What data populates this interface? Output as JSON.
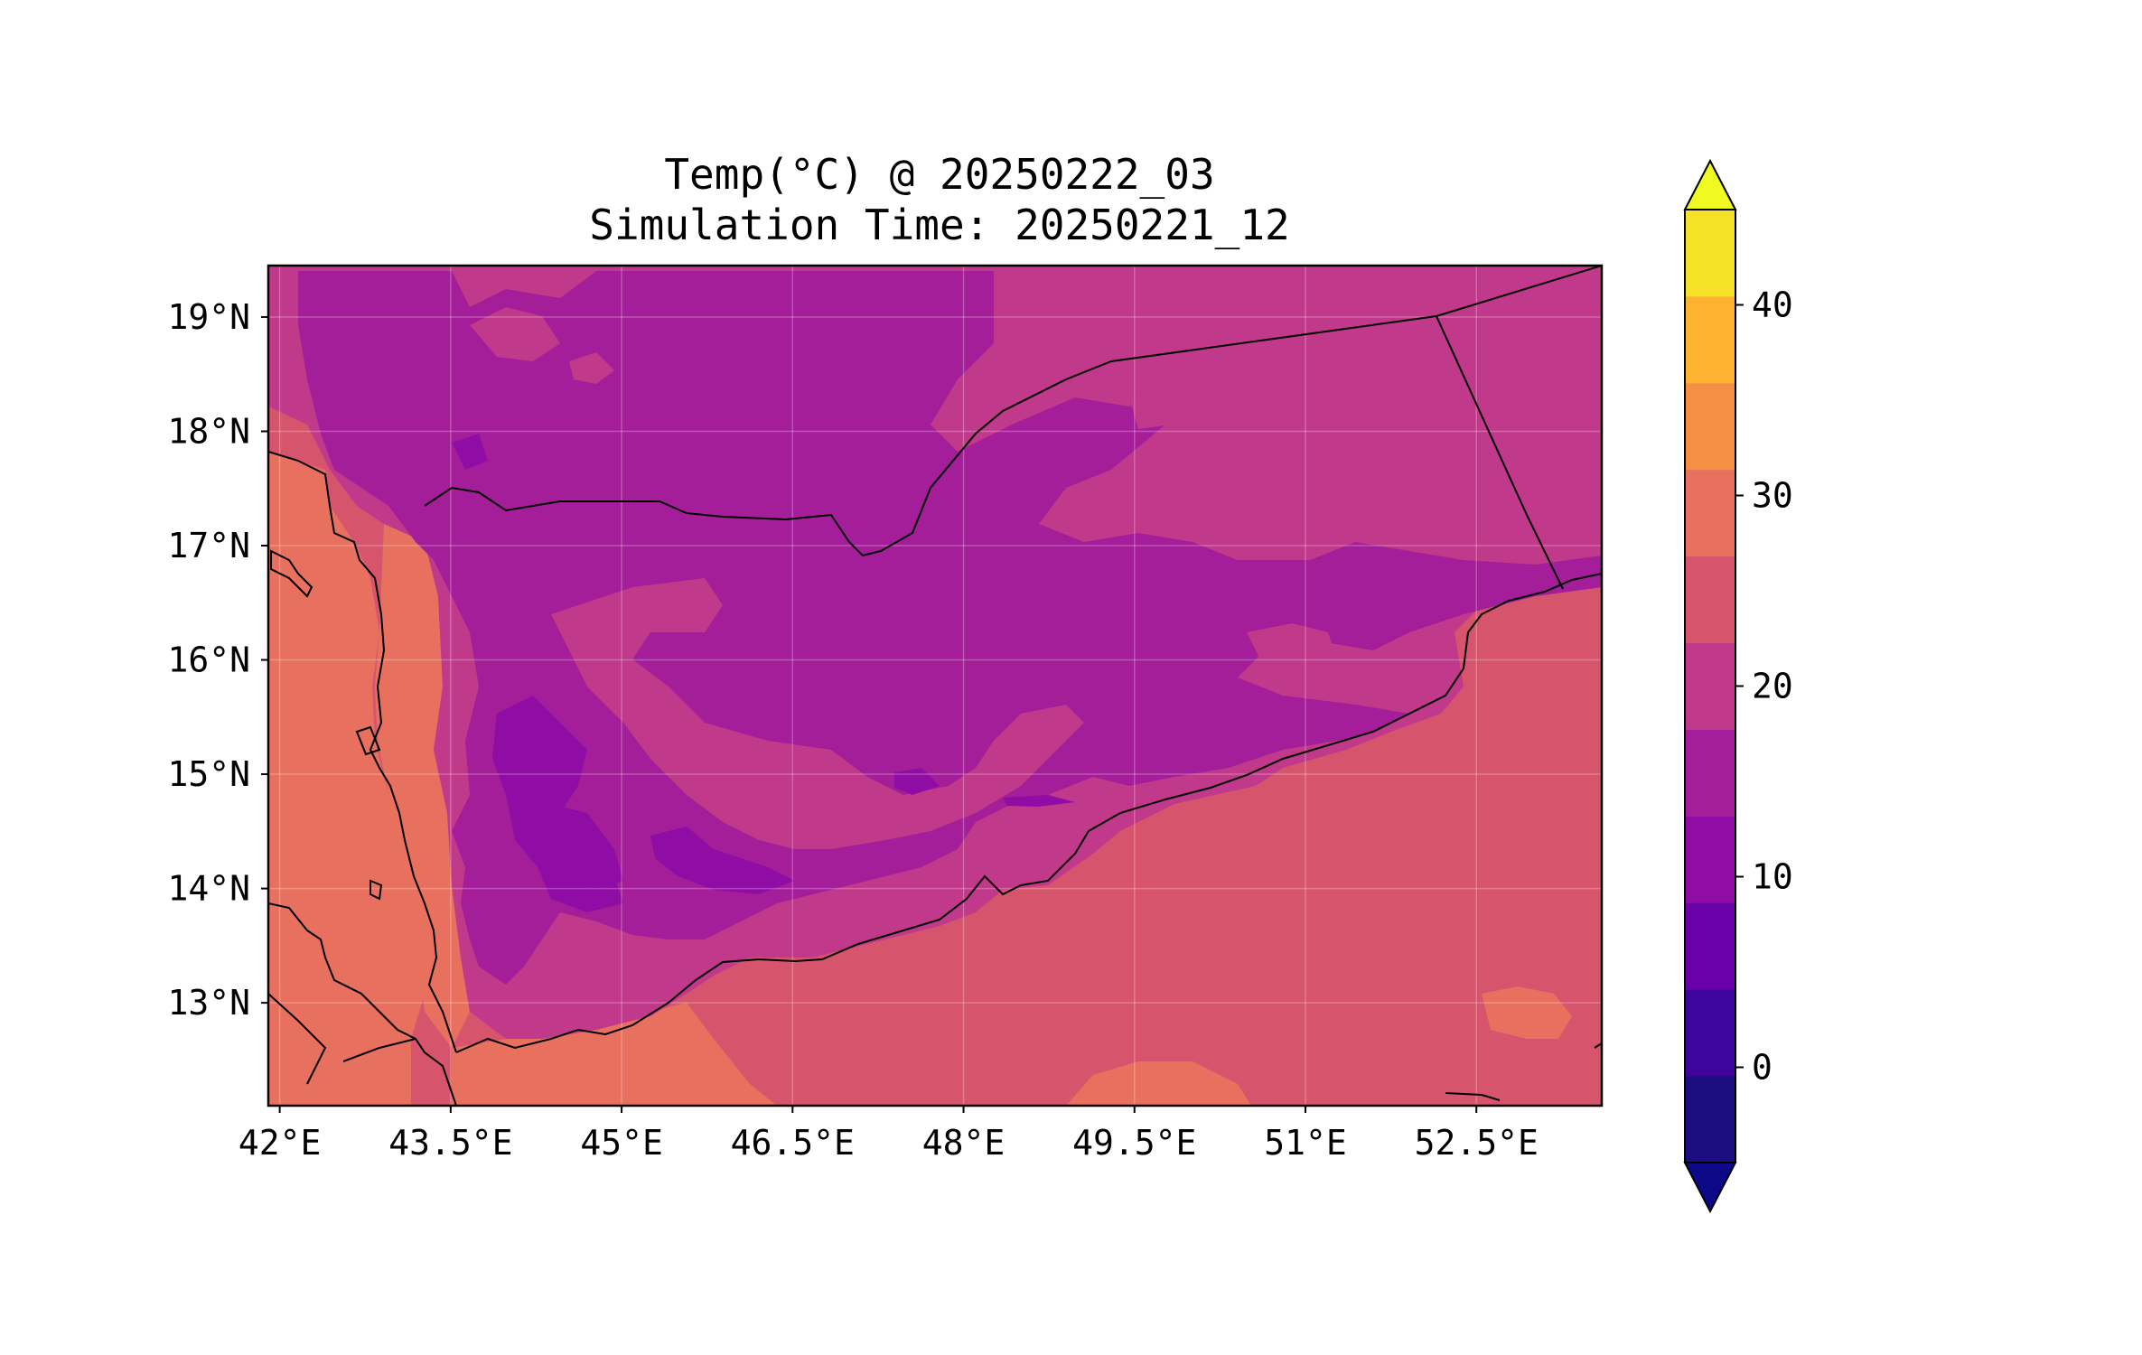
{
  "title_line1": "Temp(°C) @ 20250222_03",
  "title_line2": "Simulation Time: 20250221_12",
  "map": {
    "variable": "Temperature",
    "units": "°C",
    "projection": "PlateCarree",
    "lon_range": [
      41.9,
      53.6
    ],
    "lat_range": [
      12.1,
      19.45
    ],
    "x_ticks": [
      {
        "value": 42,
        "label": "42°E"
      },
      {
        "value": 43.5,
        "label": "43.5°E"
      },
      {
        "value": 45,
        "label": "45°E"
      },
      {
        "value": 46.5,
        "label": "46.5°E"
      },
      {
        "value": 48,
        "label": "48°E"
      },
      {
        "value": 49.5,
        "label": "49.5°E"
      },
      {
        "value": 51,
        "label": "51°E"
      },
      {
        "value": 52.5,
        "label": "52.5°E"
      }
    ],
    "y_ticks": [
      {
        "value": 13,
        "label": "13°N"
      },
      {
        "value": 14,
        "label": "14°N"
      },
      {
        "value": 15,
        "label": "15°N"
      },
      {
        "value": 16,
        "label": "16°N"
      },
      {
        "value": 17,
        "label": "17°N"
      },
      {
        "value": 18,
        "label": "18°N"
      },
      {
        "value": 19,
        "label": "19°N"
      }
    ],
    "grid": true,
    "features": [
      "coastlines",
      "country borders"
    ],
    "dominant_levels": {
      "inland_highlands": "10-15",
      "desert_plateau": "15-20",
      "gulf_of_aden": "20-25",
      "red_sea": "25-30"
    }
  },
  "colorbar": {
    "cmap": "plasma",
    "extend": "both",
    "levels": [
      -5,
      0,
      5,
      10,
      15,
      20,
      25,
      30,
      35,
      40,
      45
    ],
    "colors": [
      "#1b0c80",
      "#3e049c",
      "#6a00a8",
      "#8f0da4",
      "#a41e9a",
      "#c0398a",
      "#d6556d",
      "#e8705e",
      "#f58f44",
      "#fdb32f",
      "#f5e126"
    ],
    "under_color": "#0d0887",
    "over_color": "#f0f921",
    "ticks": [
      {
        "value": 0,
        "label": "0"
      },
      {
        "value": 10,
        "label": "10"
      },
      {
        "value": 20,
        "label": "20"
      },
      {
        "value": 30,
        "label": "30"
      },
      {
        "value": 40,
        "label": "40"
      }
    ]
  }
}
